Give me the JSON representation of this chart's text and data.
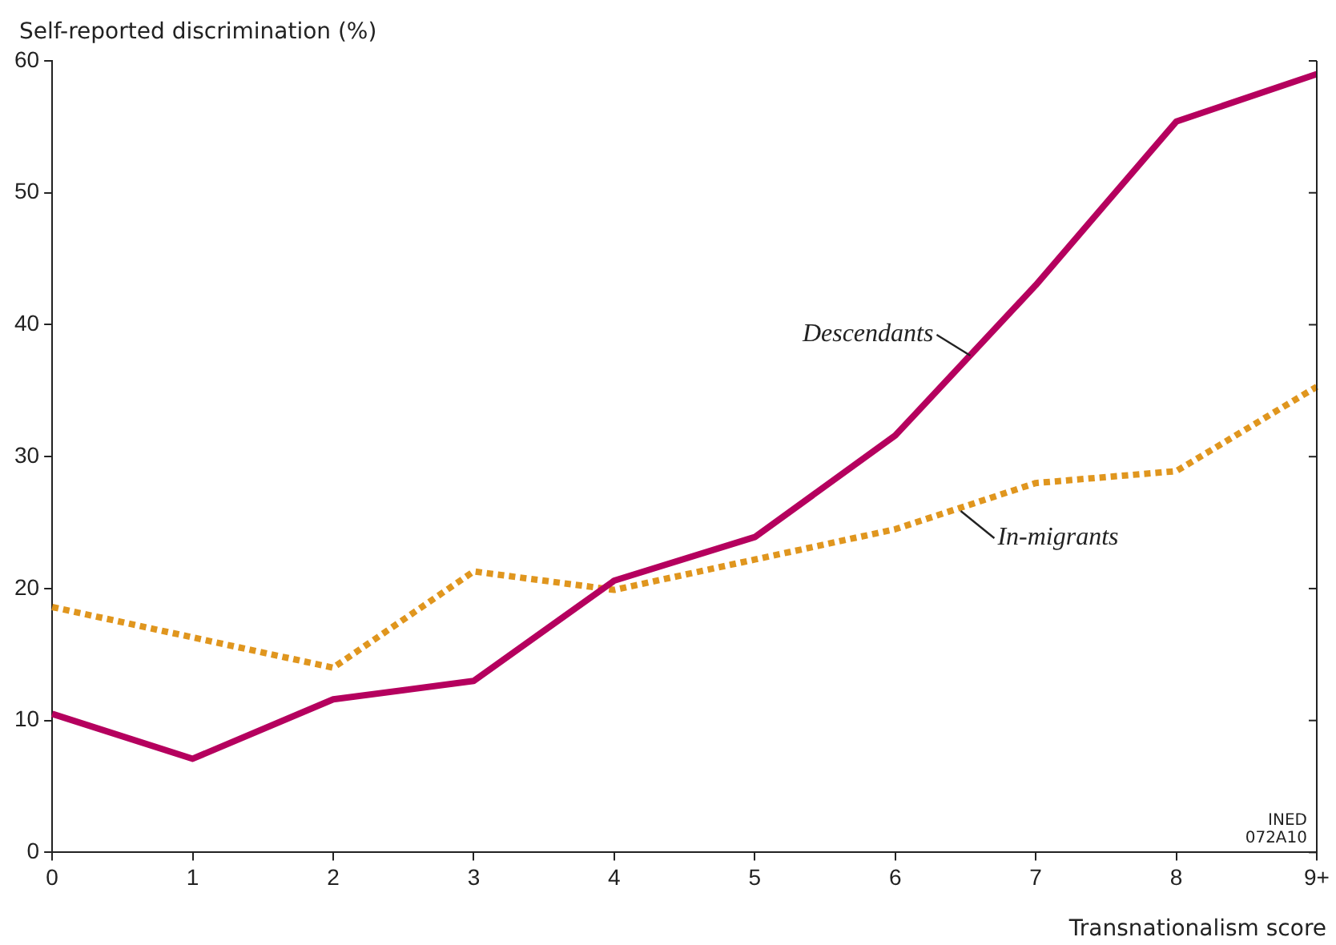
{
  "chart_data": {
    "type": "line",
    "ylabel": "Self-reported discrimination (%)",
    "xlabel": "Transnationalism score",
    "categories": [
      "0",
      "1",
      "2",
      "3",
      "4",
      "5",
      "6",
      "7",
      "8",
      "9+"
    ],
    "series": [
      {
        "name": "Descendants",
        "color": "#b5005e",
        "line_style": "solid",
        "values": [
          10.5,
          7.1,
          11.6,
          13.0,
          20.6,
          23.9,
          31.6,
          43.0,
          55.4,
          59.0
        ]
      },
      {
        "name": "In-migrants",
        "color": "#e0961e",
        "line_style": "dotted",
        "values": [
          18.6,
          16.3,
          14.0,
          21.3,
          19.9,
          22.2,
          24.5,
          28.0,
          28.9,
          35.3
        ]
      }
    ],
    "ylim": [
      0,
      60
    ],
    "yticks": [
      0,
      10,
      20,
      30,
      40,
      50,
      60
    ],
    "grid": false,
    "legend": false,
    "marker": "none",
    "annotations": [
      "INED\n072A10"
    ]
  }
}
